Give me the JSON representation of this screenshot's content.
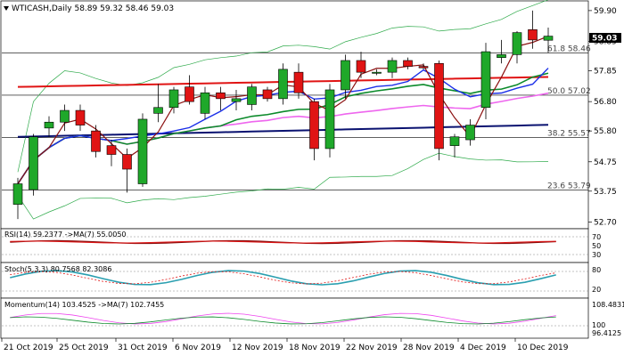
{
  "symbol_header": "WTICASH,Daily  58.89 59.32 58.46 59.03",
  "price_axis": {
    "ticks": [
      "59.90",
      "58.85",
      "57.85",
      "56.80",
      "55.80",
      "54.75",
      "53.75",
      "52.70"
    ],
    "current_price": "59.03"
  },
  "fib_levels": [
    {
      "label": "61.8 58.46",
      "value": 58.46
    },
    {
      "label": "50.0 57.02",
      "value": 57.02
    },
    {
      "label": "38.2 55.57",
      "value": 55.57
    },
    {
      "label": "23.6 53.79",
      "value": 53.79
    }
  ],
  "x_axis_labels": [
    "21 Oct 2019",
    "25 Oct 2019",
    "31 Oct 2019",
    "6 Nov 2019",
    "12 Nov 2019",
    "18 Nov 2019",
    "22 Nov 2019",
    "28 Nov 2019",
    "4 Dec 2019",
    "10 Dec 2019"
  ],
  "rsi_panel": {
    "title": "RSI(14) 59.2377  ->MA(7) 55.0050",
    "ticks": [
      "70",
      "50",
      "30"
    ]
  },
  "stoch_panel": {
    "title": "Stoch(5,3,3) 80.7568 82.3086",
    "ticks": [
      "80",
      "20"
    ]
  },
  "momentum_panel": {
    "title": "Momentum(14) 103.4525  ->MA(7) 102.7455",
    "ticks": [
      "108.4831",
      "100",
      "96.4125"
    ]
  },
  "colors": {
    "bull": "#1fa82a",
    "bear": "#e01414",
    "sma_fast": "#8b1010",
    "sma_blue": "#1a2ee8",
    "sma_red": "#e01414",
    "sma_navy": "#0a1270",
    "sma_magenta": "#ee66ee",
    "sma_green": "#0b8a2a",
    "bollinger": "#2eaa4a"
  },
  "chart_data": {
    "type": "candlestick",
    "title": "WTICASH,Daily",
    "ylim": [
      52.5,
      60.2
    ],
    "candles": [
      {
        "o": 53.3,
        "h": 54.2,
        "l": 52.8,
        "c": 54.0
      },
      {
        "o": 53.8,
        "h": 55.7,
        "l": 53.6,
        "c": 55.6
      },
      {
        "o": 55.9,
        "h": 56.3,
        "l": 55.6,
        "c": 56.1
      },
      {
        "o": 56.1,
        "h": 56.7,
        "l": 55.8,
        "c": 56.5
      },
      {
        "o": 56.5,
        "h": 56.7,
        "l": 55.8,
        "c": 56.0
      },
      {
        "o": 55.8,
        "h": 56.0,
        "l": 54.9,
        "c": 55.1
      },
      {
        "o": 55.3,
        "h": 55.5,
        "l": 54.6,
        "c": 55.0
      },
      {
        "o": 55.0,
        "h": 55.2,
        "l": 53.7,
        "c": 54.5
      },
      {
        "o": 54.0,
        "h": 56.4,
        "l": 53.9,
        "c": 56.2
      },
      {
        "o": 56.4,
        "h": 57.4,
        "l": 56.1,
        "c": 56.6
      },
      {
        "o": 56.6,
        "h": 57.3,
        "l": 56.4,
        "c": 57.2
      },
      {
        "o": 57.3,
        "h": 57.7,
        "l": 56.7,
        "c": 56.8
      },
      {
        "o": 56.4,
        "h": 57.3,
        "l": 56.2,
        "c": 57.1
      },
      {
        "o": 57.1,
        "h": 57.3,
        "l": 56.5,
        "c": 56.9
      },
      {
        "o": 56.8,
        "h": 57.2,
        "l": 56.5,
        "c": 56.9
      },
      {
        "o": 56.7,
        "h": 57.4,
        "l": 56.5,
        "c": 57.3
      },
      {
        "o": 57.2,
        "h": 57.3,
        "l": 56.8,
        "c": 56.9
      },
      {
        "o": 56.9,
        "h": 58.1,
        "l": 56.7,
        "c": 57.9
      },
      {
        "o": 57.8,
        "h": 58.1,
        "l": 56.9,
        "c": 57.1
      },
      {
        "o": 56.8,
        "h": 56.9,
        "l": 54.8,
        "c": 55.2
      },
      {
        "o": 55.2,
        "h": 57.4,
        "l": 54.9,
        "c": 57.2
      },
      {
        "o": 57.2,
        "h": 58.4,
        "l": 56.9,
        "c": 58.2
      },
      {
        "o": 58.2,
        "h": 58.5,
        "l": 57.6,
        "c": 57.8
      },
      {
        "o": 57.8,
        "h": 57.9,
        "l": 57.7,
        "c": 57.8
      },
      {
        "o": 57.8,
        "h": 58.3,
        "l": 57.6,
        "c": 58.2
      },
      {
        "o": 58.2,
        "h": 58.3,
        "l": 57.9,
        "c": 58.0
      },
      {
        "o": 58.0,
        "h": 58.1,
        "l": 57.9,
        "c": 57.95
      },
      {
        "o": 58.1,
        "h": 58.2,
        "l": 54.8,
        "c": 55.2
      },
      {
        "o": 55.3,
        "h": 55.7,
        "l": 54.9,
        "c": 55.6
      },
      {
        "o": 55.5,
        "h": 56.2,
        "l": 55.3,
        "c": 56.0
      },
      {
        "o": 56.6,
        "h": 58.8,
        "l": 56.2,
        "c": 58.5
      },
      {
        "o": 58.3,
        "h": 58.9,
        "l": 58.1,
        "c": 58.4
      },
      {
        "o": 58.4,
        "h": 59.2,
        "l": 58.1,
        "c": 59.15
      },
      {
        "o": 59.25,
        "h": 59.9,
        "l": 58.6,
        "c": 58.9
      },
      {
        "o": 58.89,
        "h": 59.32,
        "l": 58.46,
        "c": 59.03
      }
    ]
  }
}
